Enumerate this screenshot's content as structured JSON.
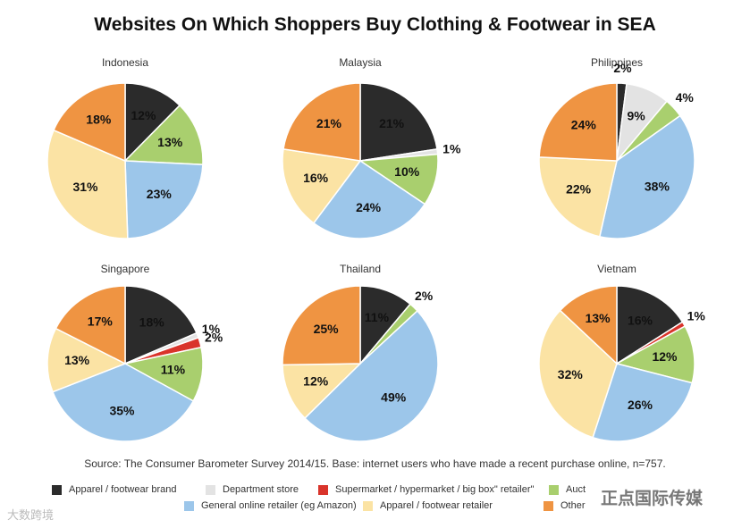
{
  "colors": {
    "brand": "#2b2b2b",
    "department": "#e3e3e3",
    "supermarket": "#d9342b",
    "auction": "#a9cf6e",
    "general": "#9cc6ea",
    "apparel_retailer": "#fbe3a4",
    "other": "#ef9442"
  },
  "chart_data": {
    "type": "pie",
    "title": "Websites On Which Shoppers Buy Clothing & Footwear in SEA",
    "source": "Source: The Consumer Barometer Survey 2014/15. Base: internet users who have made a recent purchase online, n=757.",
    "legend": [
      {
        "key": "brand",
        "label": "Apparel / footwear brand"
      },
      {
        "key": "department",
        "label": "Department store"
      },
      {
        "key": "supermarket",
        "label": "Supermarket / hypermarket / big box\" retailer\""
      },
      {
        "key": "auction",
        "label": "Auct"
      },
      {
        "key": "general",
        "label": "General online retailer (eg Amazon)"
      },
      {
        "key": "apparel_retailer",
        "label": "Apparel / footwear retailer"
      },
      {
        "key": "other",
        "label": "Other"
      }
    ],
    "pies": [
      {
        "name": "Indonesia",
        "slices": [
          {
            "key": "brand",
            "value": 12
          },
          {
            "key": "auction",
            "value": 13
          },
          {
            "key": "general",
            "value": 23
          },
          {
            "key": "apparel_retailer",
            "value": 31
          },
          {
            "key": "other",
            "value": 18
          }
        ]
      },
      {
        "name": "Malaysia",
        "slices": [
          {
            "key": "brand",
            "value": 21
          },
          {
            "key": "department",
            "value": 1
          },
          {
            "key": "auction",
            "value": 10
          },
          {
            "key": "general",
            "value": 24
          },
          {
            "key": "apparel_retailer",
            "value": 16
          },
          {
            "key": "other",
            "value": 21
          }
        ]
      },
      {
        "name": "Philippines",
        "slices": [
          {
            "key": "brand",
            "value": 2
          },
          {
            "key": "department",
            "value": 9
          },
          {
            "key": "auction",
            "value": 4
          },
          {
            "key": "general",
            "value": 38
          },
          {
            "key": "apparel_retailer",
            "value": 22
          },
          {
            "key": "other",
            "value": 24
          }
        ]
      },
      {
        "name": "Singapore",
        "slices": [
          {
            "key": "brand",
            "value": 18
          },
          {
            "key": "department",
            "value": 1
          },
          {
            "key": "supermarket",
            "value": 2
          },
          {
            "key": "auction",
            "value": 11
          },
          {
            "key": "general",
            "value": 35
          },
          {
            "key": "apparel_retailer",
            "value": 13
          },
          {
            "key": "other",
            "value": 17
          }
        ]
      },
      {
        "name": "Thailand",
        "slices": [
          {
            "key": "brand",
            "value": 11
          },
          {
            "key": "auction",
            "value": 2
          },
          {
            "key": "general",
            "value": 49
          },
          {
            "key": "apparel_retailer",
            "value": 12
          },
          {
            "key": "other",
            "value": 25
          }
        ]
      },
      {
        "name": "Vietnam",
        "slices": [
          {
            "key": "brand",
            "value": 16
          },
          {
            "key": "supermarket",
            "value": 1
          },
          {
            "key": "auction",
            "value": 12
          },
          {
            "key": "general",
            "value": 26
          },
          {
            "key": "apparel_retailer",
            "value": 32
          },
          {
            "key": "other",
            "value": 13
          }
        ]
      }
    ]
  },
  "watermarks": {
    "left": "大数跨境",
    "right": "正点国际传媒"
  }
}
